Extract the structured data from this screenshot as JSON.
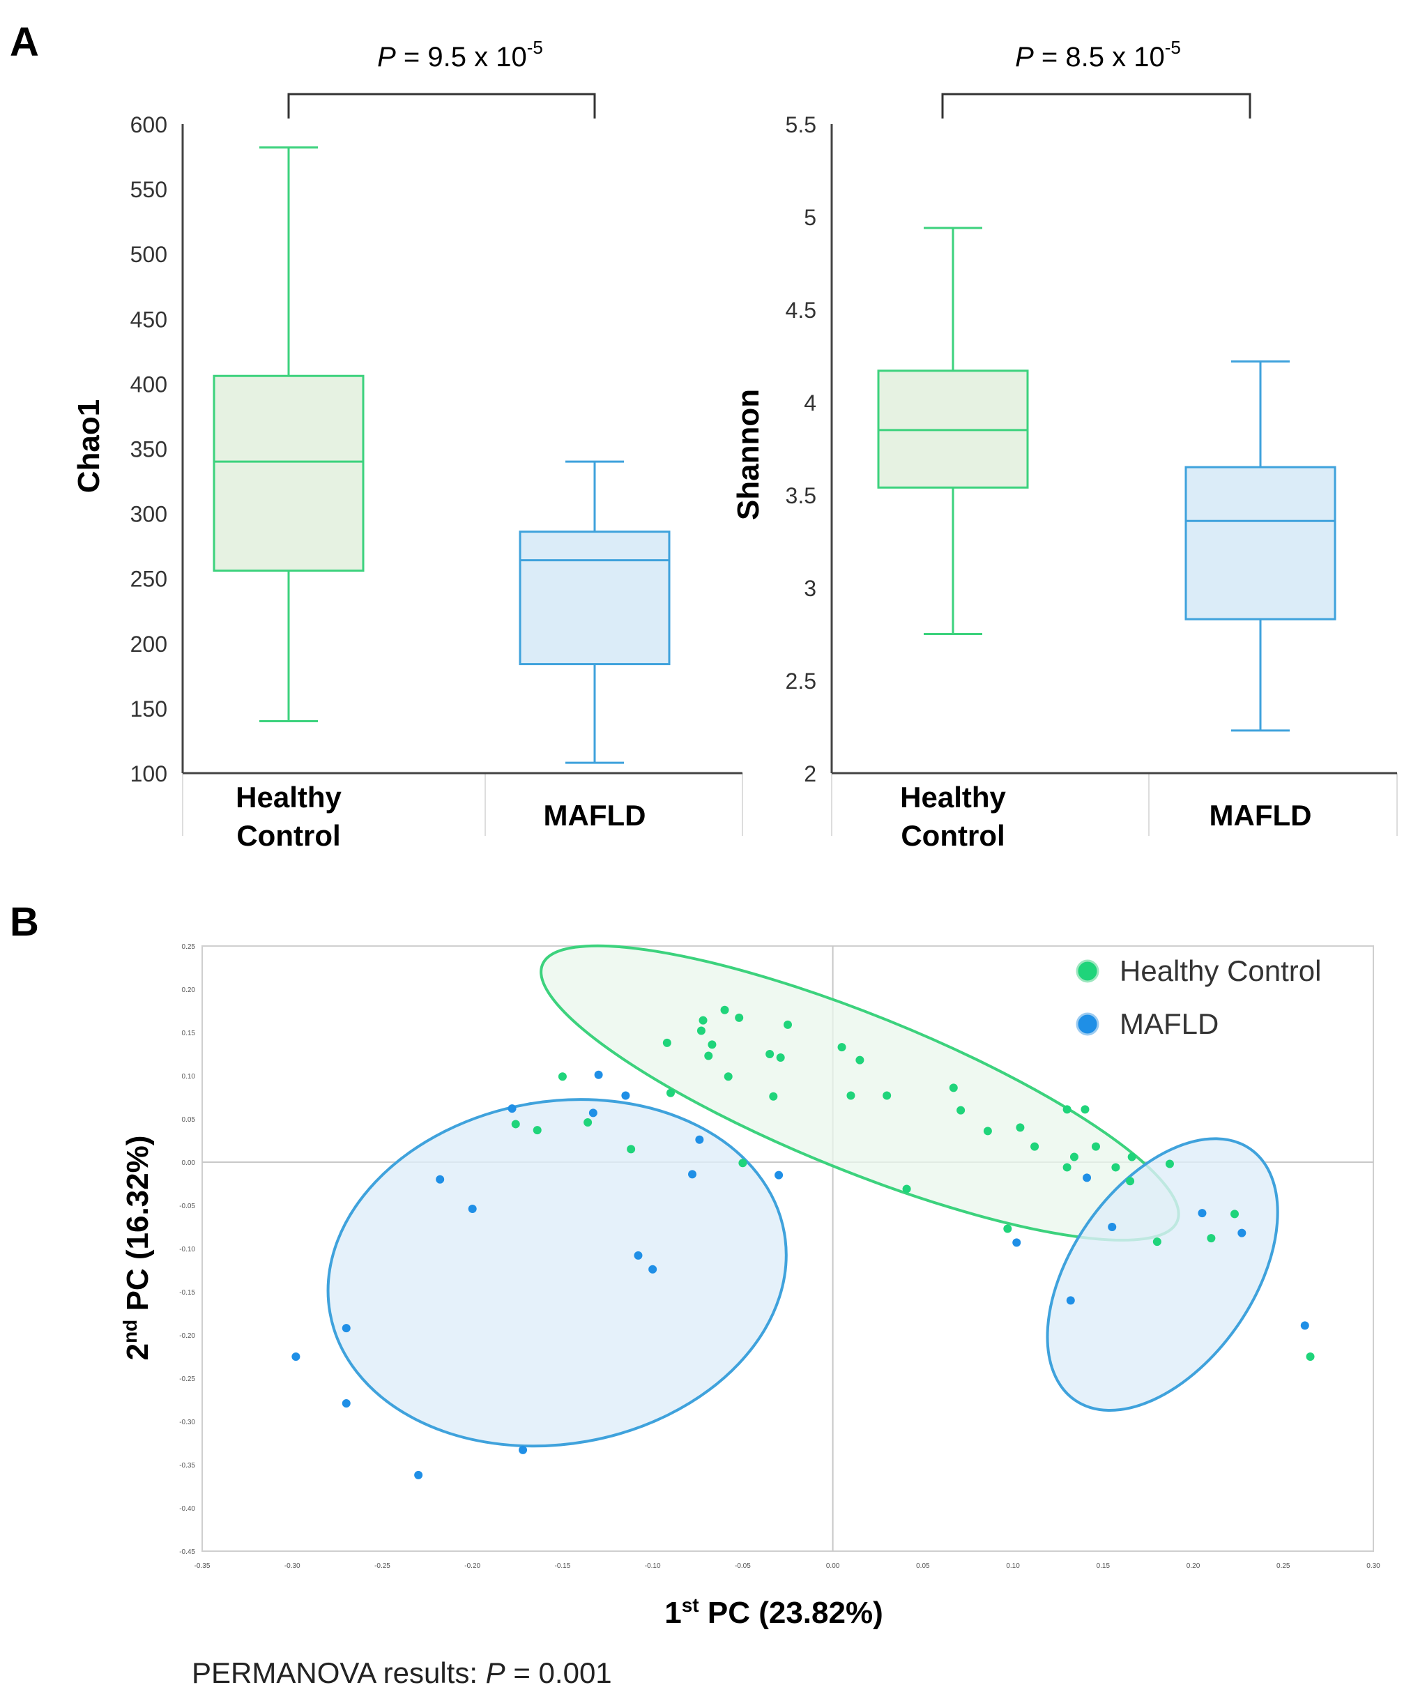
{
  "panels": {
    "a_label": "A",
    "b_label": "B"
  },
  "colors": {
    "healthy_stroke": "#3cd27d",
    "healthy_fill": "#e6f2e2",
    "mafld_stroke": "#3fa2dc",
    "mafld_fill": "#dbecf8",
    "healthy_point": "#1fd47a",
    "mafld_point": "#1f8fe6",
    "axis": "#333333",
    "grid": "#dddddd"
  },
  "chart_data": [
    {
      "id": "chao1",
      "type": "boxplot",
      "ylabel": "Chao1",
      "ylim": [
        100,
        600
      ],
      "yticks": [
        "100",
        "150",
        "200",
        "250",
        "300",
        "350",
        "400",
        "450",
        "500",
        "550",
        "600"
      ],
      "categories": [
        {
          "line1": "Healthy",
          "line2": "Control"
        },
        {
          "line1": "MAFLD",
          "line2": ""
        }
      ],
      "boxes": [
        {
          "group": "Healthy Control",
          "whisker_low": 140,
          "q1": 256,
          "median": 340,
          "q3": 406,
          "whisker_high": 582
        },
        {
          "group": "MAFLD",
          "whisker_low": 108,
          "q1": 184,
          "median": 264,
          "q3": 286,
          "whisker_high": 340
        }
      ],
      "pvalue": {
        "label": "P",
        "text": " = 9.5 x 10",
        "exponent": "-5"
      }
    },
    {
      "id": "shannon",
      "type": "boxplot",
      "ylabel": "Shannon",
      "ylim": [
        2,
        5.5
      ],
      "yticks": [
        "2",
        "2.5",
        "3",
        "3.5",
        "4",
        "4.5",
        "5",
        "5.5"
      ],
      "categories": [
        {
          "line1": "Healthy",
          "line2": "Control"
        },
        {
          "line1": "MAFLD",
          "line2": ""
        }
      ],
      "boxes": [
        {
          "group": "Healthy Control",
          "whisker_low": 2.75,
          "q1": 3.54,
          "median": 3.85,
          "q3": 4.17,
          "whisker_high": 4.94
        },
        {
          "group": "MAFLD",
          "whisker_low": 2.23,
          "q1": 2.83,
          "median": 3.36,
          "q3": 3.65,
          "whisker_high": 4.22
        }
      ],
      "pvalue": {
        "label": "P",
        "text": " = 8.5 x 10",
        "exponent": "-5"
      }
    },
    {
      "id": "pcoa",
      "type": "scatter",
      "xlabel": {
        "prefix": "1",
        "sup": "st",
        "rest": " PC (23.82%)"
      },
      "ylabel": {
        "prefix": "2",
        "sup": "nd",
        "rest": " PC (16.32%)"
      },
      "xlim": [
        -0.35,
        0.3
      ],
      "ylim": [
        -0.45,
        0.25
      ],
      "xticks": [
        "-0.35",
        "-0.30",
        "-0.25",
        "-0.20",
        "-0.15",
        "-0.10",
        "-0.05",
        "0.00",
        "0.05",
        "0.10",
        "0.15",
        "0.20",
        "0.25",
        "0.30"
      ],
      "yticks": [
        "0.25",
        "0.20",
        "0.15",
        "0.10",
        "0.05",
        "0.00",
        "-0.05",
        "-0.10",
        "-0.15",
        "-0.20",
        "-0.25",
        "-0.30",
        "-0.35",
        "-0.40",
        "-0.45"
      ],
      "legend": [
        {
          "label": "Healthy Control",
          "series": "healthy"
        },
        {
          "label": "MAFLD",
          "series": "mafld"
        }
      ],
      "series": [
        {
          "name": "Healthy Control",
          "key": "healthy",
          "points": [
            [
              -0.06,
              0.176
            ],
            [
              -0.072,
              0.164
            ],
            [
              -0.052,
              0.167
            ],
            [
              -0.025,
              0.159
            ],
            [
              -0.073,
              0.152
            ],
            [
              -0.067,
              0.136
            ],
            [
              -0.092,
              0.138
            ],
            [
              -0.069,
              0.123
            ],
            [
              -0.035,
              0.125
            ],
            [
              -0.029,
              0.121
            ],
            [
              0.005,
              0.133
            ],
            [
              0.015,
              0.118
            ],
            [
              -0.058,
              0.099
            ],
            [
              -0.09,
              0.08
            ],
            [
              -0.033,
              0.076
            ],
            [
              0.01,
              0.077
            ],
            [
              0.03,
              0.077
            ],
            [
              -0.15,
              0.099
            ],
            [
              -0.176,
              0.044
            ],
            [
              -0.164,
              0.037
            ],
            [
              -0.136,
              0.046
            ],
            [
              -0.112,
              0.015
            ],
            [
              0.067,
              0.086
            ],
            [
              0.071,
              0.06
            ],
            [
              0.104,
              0.04
            ],
            [
              0.086,
              0.036
            ],
            [
              0.112,
              0.018
            ],
            [
              0.13,
              0.061
            ],
            [
              0.14,
              0.061
            ],
            [
              0.134,
              0.006
            ],
            [
              0.146,
              0.018
            ],
            [
              0.166,
              0.006
            ],
            [
              0.13,
              -0.006
            ],
            [
              0.157,
              -0.006
            ],
            [
              0.187,
              -0.002
            ],
            [
              -0.05,
              -0.001
            ],
            [
              0.041,
              -0.031
            ],
            [
              0.165,
              -0.022
            ],
            [
              0.097,
              -0.077
            ],
            [
              0.18,
              -0.092
            ],
            [
              0.21,
              -0.088
            ],
            [
              0.223,
              -0.06
            ],
            [
              0.265,
              -0.225
            ]
          ]
        },
        {
          "name": "MAFLD",
          "key": "mafld",
          "points": [
            [
              -0.13,
              0.101
            ],
            [
              -0.115,
              0.077
            ],
            [
              -0.178,
              0.062
            ],
            [
              -0.133,
              0.057
            ],
            [
              -0.074,
              0.026
            ],
            [
              -0.078,
              -0.014
            ],
            [
              -0.03,
              -0.015
            ],
            [
              -0.218,
              -0.02
            ],
            [
              -0.2,
              -0.054
            ],
            [
              -0.108,
              -0.108
            ],
            [
              -0.1,
              -0.124
            ],
            [
              -0.27,
              -0.192
            ],
            [
              -0.298,
              -0.225
            ],
            [
              -0.27,
              -0.279
            ],
            [
              -0.172,
              -0.333
            ],
            [
              -0.23,
              -0.362
            ],
            [
              0.141,
              -0.018
            ],
            [
              0.155,
              -0.075
            ],
            [
              0.205,
              -0.059
            ],
            [
              0.102,
              -0.093
            ],
            [
              0.227,
              -0.082
            ],
            [
              0.132,
              -0.16
            ],
            [
              0.262,
              -0.189
            ]
          ]
        }
      ],
      "ellipses": [
        {
          "key": "healthy",
          "center": [
            0.015,
            0.08
          ],
          "rx_data": 0.19,
          "ry_data": 0.09,
          "rotation_deg": 22
        },
        {
          "key": "mafld",
          "center": [
            -0.153,
            -0.128
          ],
          "rx_data": 0.128,
          "ry_data": 0.198,
          "rotation_deg": -10
        },
        {
          "key": "mafld",
          "center": [
            0.183,
            -0.13
          ],
          "rx_data": 0.085,
          "ry_data": 0.105,
          "rotation_deg": -55
        }
      ],
      "footnote": {
        "prefix": "PERMANOVA results: ",
        "p": "P",
        "suffix": " = 0.001"
      }
    }
  ]
}
